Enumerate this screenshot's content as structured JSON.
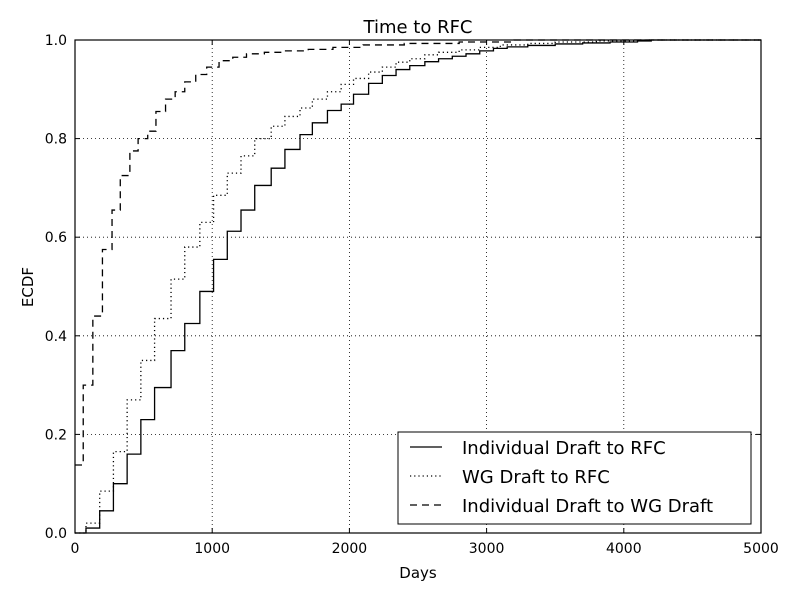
{
  "chart_data": {
    "type": "line",
    "title": "Time to RFC",
    "xlabel": "Days",
    "ylabel": "ECDF",
    "xlim": [
      0,
      5000
    ],
    "ylim": [
      0.0,
      1.0
    ],
    "xticks": [
      "0",
      "1000",
      "2000",
      "3000",
      "4000",
      "5000"
    ],
    "yticks": [
      "0.0",
      "0.2",
      "0.4",
      "0.6",
      "0.8",
      "1.0"
    ],
    "grid": true,
    "legend_position": "lower-right",
    "series": [
      {
        "name": "Individual Draft to RFC",
        "line_style": "solid",
        "points": [
          [
            0,
            0
          ],
          [
            80,
            0.01
          ],
          [
            180,
            0.045
          ],
          [
            280,
            0.1
          ],
          [
            380,
            0.16
          ],
          [
            480,
            0.23
          ],
          [
            580,
            0.295
          ],
          [
            700,
            0.37
          ],
          [
            800,
            0.425
          ],
          [
            910,
            0.49
          ],
          [
            1010,
            0.555
          ],
          [
            1110,
            0.612
          ],
          [
            1210,
            0.655
          ],
          [
            1310,
            0.705
          ],
          [
            1430,
            0.74
          ],
          [
            1530,
            0.778
          ],
          [
            1640,
            0.808
          ],
          [
            1730,
            0.832
          ],
          [
            1840,
            0.857
          ],
          [
            1940,
            0.87
          ],
          [
            2030,
            0.89
          ],
          [
            2140,
            0.912
          ],
          [
            2240,
            0.928
          ],
          [
            2340,
            0.94
          ],
          [
            2440,
            0.948
          ],
          [
            2550,
            0.956
          ],
          [
            2650,
            0.962
          ],
          [
            2750,
            0.967
          ],
          [
            2850,
            0.972
          ],
          [
            2950,
            0.978
          ],
          [
            3050,
            0.983
          ],
          [
            3150,
            0.986
          ],
          [
            3300,
            0.989
          ],
          [
            3500,
            0.992
          ],
          [
            3700,
            0.994
          ],
          [
            3900,
            0.996
          ],
          [
            4100,
            0.998
          ],
          [
            4200,
            1.0
          ],
          [
            5000,
            1.0
          ]
        ]
      },
      {
        "name": "WG Draft to RFC",
        "line_style": "dotted",
        "points": [
          [
            0,
            0
          ],
          [
            80,
            0.02
          ],
          [
            180,
            0.085
          ],
          [
            280,
            0.165
          ],
          [
            380,
            0.27
          ],
          [
            480,
            0.35
          ],
          [
            580,
            0.435
          ],
          [
            700,
            0.515
          ],
          [
            800,
            0.58
          ],
          [
            910,
            0.63
          ],
          [
            1010,
            0.685
          ],
          [
            1110,
            0.73
          ],
          [
            1210,
            0.765
          ],
          [
            1310,
            0.8
          ],
          [
            1430,
            0.825
          ],
          [
            1530,
            0.845
          ],
          [
            1640,
            0.862
          ],
          [
            1730,
            0.88
          ],
          [
            1840,
            0.895
          ],
          [
            1940,
            0.91
          ],
          [
            2030,
            0.922
          ],
          [
            2140,
            0.935
          ],
          [
            2240,
            0.945
          ],
          [
            2340,
            0.955
          ],
          [
            2440,
            0.962
          ],
          [
            2550,
            0.97
          ],
          [
            2650,
            0.975
          ],
          [
            2800,
            0.98
          ],
          [
            2950,
            0.985
          ],
          [
            3100,
            0.99
          ],
          [
            3300,
            0.993
          ],
          [
            3500,
            0.996
          ],
          [
            3800,
            0.998
          ],
          [
            4100,
            1.0
          ],
          [
            5000,
            1.0
          ]
        ]
      },
      {
        "name": "Individual Draft to WG Draft",
        "line_style": "dashed",
        "points": [
          [
            0,
            0.138
          ],
          [
            60,
            0.3
          ],
          [
            130,
            0.44
          ],
          [
            200,
            0.575
          ],
          [
            270,
            0.655
          ],
          [
            330,
            0.725
          ],
          [
            400,
            0.775
          ],
          [
            460,
            0.8
          ],
          [
            530,
            0.815
          ],
          [
            590,
            0.855
          ],
          [
            660,
            0.88
          ],
          [
            730,
            0.895
          ],
          [
            800,
            0.915
          ],
          [
            880,
            0.93
          ],
          [
            960,
            0.945
          ],
          [
            1050,
            0.958
          ],
          [
            1150,
            0.965
          ],
          [
            1250,
            0.972
          ],
          [
            1380,
            0.975
          ],
          [
            1520,
            0.978
          ],
          [
            1700,
            0.981
          ],
          [
            1880,
            0.985
          ],
          [
            2100,
            0.99
          ],
          [
            2400,
            0.993
          ],
          [
            2800,
            0.996
          ],
          [
            3200,
            1.0
          ],
          [
            5000,
            1.0
          ]
        ]
      }
    ]
  }
}
